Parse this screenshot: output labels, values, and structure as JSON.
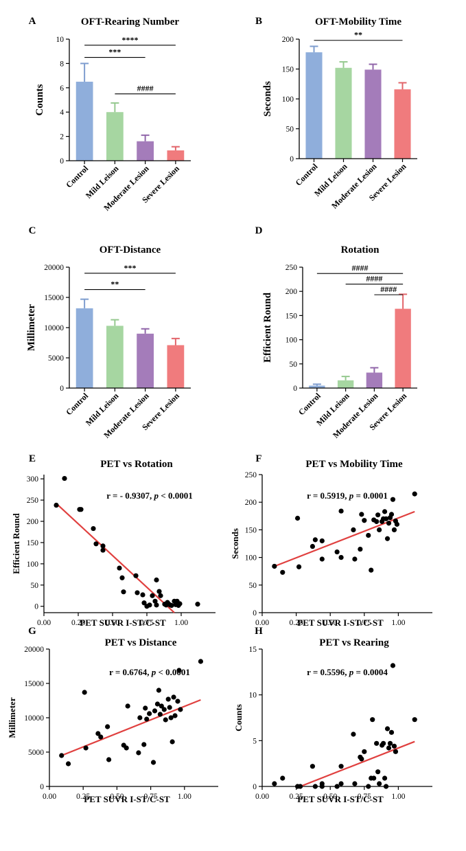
{
  "figure": {
    "description": "Multi-panel scientific figure"
  },
  "colors": {
    "control": "#8FAEDB",
    "control_err": "#7E9DCF",
    "mild": "#A6D6A1",
    "mild_err": "#95C98F",
    "moderate": "#A47CBA",
    "moderate_err": "#9166AA",
    "severe": "#F07B7D",
    "severe_err": "#E2646A",
    "fit_line": "#E0403F",
    "point": "#000000"
  },
  "chart_data": [
    {
      "id": "A",
      "panel_label": "A",
      "type": "bar",
      "title": "OFT-Rearing Number",
      "ylabel": "Counts",
      "xlabel": "",
      "categories": [
        "Control",
        "Mild Leison",
        "Moderate Lesion",
        "Severe Lesion"
      ],
      "values": [
        6.5,
        4.0,
        1.6,
        0.85
      ],
      "errors": [
        1.5,
        0.75,
        0.5,
        0.3
      ],
      "ylim": [
        0,
        10
      ],
      "yticks": [
        0,
        2,
        4,
        6,
        8,
        10
      ],
      "sig": [
        {
          "from": 0,
          "to": 3,
          "label": "****",
          "y": 9.5
        },
        {
          "from": 0,
          "to": 2,
          "label": "***",
          "y": 8.5
        },
        {
          "from": 1,
          "to": 3,
          "label": "####",
          "y": 5.5
        }
      ]
    },
    {
      "id": "B",
      "panel_label": "B",
      "type": "bar",
      "title": "OFT-Mobility Time",
      "ylabel": "Seconds",
      "xlabel": "",
      "categories": [
        "Control",
        "Mild Leison",
        "Moderate Lesion",
        "Severe Lesion"
      ],
      "values": [
        178,
        152,
        149,
        116
      ],
      "errors": [
        10,
        10,
        9,
        11
      ],
      "ylim": [
        0,
        200
      ],
      "yticks": [
        0,
        50,
        100,
        150,
        200
      ],
      "sig": [
        {
          "from": 0,
          "to": 3,
          "label": "**",
          "y": 198
        }
      ]
    },
    {
      "id": "C",
      "panel_label": "C",
      "type": "bar",
      "title": "OFT-Distance",
      "ylabel": "Millimeter",
      "xlabel": "",
      "categories": [
        "Control",
        "Mild Leison",
        "Moderate Lesion",
        "Severe Lesion"
      ],
      "values": [
        13200,
        10300,
        9000,
        7100
      ],
      "errors": [
        1500,
        1000,
        800,
        1100
      ],
      "ylim": [
        0,
        20000
      ],
      "yticks": [
        0,
        5000,
        10000,
        15000,
        20000
      ],
      "sig": [
        {
          "from": 0,
          "to": 3,
          "label": "***",
          "y": 19000
        },
        {
          "from": 0,
          "to": 2,
          "label": "**",
          "y": 16300
        }
      ]
    },
    {
      "id": "D",
      "panel_label": "D",
      "type": "bar",
      "title": "Rotation",
      "ylabel": "Efficient Round",
      "xlabel": "",
      "categories": [
        "Control",
        "Mild Leison",
        "Moderate Lesion",
        "Severe Lesion"
      ],
      "values": [
        5,
        16,
        32,
        164
      ],
      "errors": [
        3,
        8,
        10,
        30
      ],
      "ylim": [
        0,
        250
      ],
      "yticks": [
        0,
        50,
        100,
        150,
        200,
        250
      ],
      "sig": [
        {
          "from": 0,
          "to": 3,
          "label": "####",
          "y": 237
        },
        {
          "from": 1,
          "to": 3,
          "label": "####",
          "y": 215
        },
        {
          "from": 2,
          "to": 3,
          "label": "####",
          "y": 193
        }
      ]
    },
    {
      "id": "E",
      "panel_label": "E",
      "type": "scatter",
      "title": "PET vs Rotation",
      "xlabel": "PET SUVR I-ST/C-ST",
      "ylabel": "Efficient Round",
      "annotation_prefix": "r = - 0.9307, ",
      "annotation_p": "p",
      "annotation_suffix": " < 0.0001",
      "xlim": [
        0,
        1.25
      ],
      "ylim": [
        -15,
        310
      ],
      "xticks": [
        "0.00",
        "0.25",
        "0.50",
        "0.75",
        "1.00"
      ],
      "yticks": [
        0,
        50,
        100,
        150,
        200,
        250,
        300
      ],
      "fit": {
        "x0": 0.09,
        "y0": 242,
        "x1": 0.95,
        "y1": -15
      },
      "points": [
        [
          0.09,
          238
        ],
        [
          0.15,
          301
        ],
        [
          0.26,
          228
        ],
        [
          0.27,
          228
        ],
        [
          0.36,
          183
        ],
        [
          0.38,
          147
        ],
        [
          0.43,
          142
        ],
        [
          0.43,
          132
        ],
        [
          0.55,
          90
        ],
        [
          0.57,
          67
        ],
        [
          0.58,
          34
        ],
        [
          0.67,
          72
        ],
        [
          0.68,
          32
        ],
        [
          0.72,
          27
        ],
        [
          0.73,
          8
        ],
        [
          0.75,
          0
        ],
        [
          0.77,
          3
        ],
        [
          0.79,
          25
        ],
        [
          0.81,
          12
        ],
        [
          0.82,
          3
        ],
        [
          0.82,
          62
        ],
        [
          0.84,
          35
        ],
        [
          0.85,
          25
        ],
        [
          0.88,
          5
        ],
        [
          0.89,
          3
        ],
        [
          0.9,
          9
        ],
        [
          0.91,
          5
        ],
        [
          0.92,
          3
        ],
        [
          0.93,
          2
        ],
        [
          0.95,
          12
        ],
        [
          0.96,
          4
        ],
        [
          0.97,
          12
        ],
        [
          0.98,
          2
        ],
        [
          0.99,
          6
        ],
        [
          1.12,
          5
        ]
      ]
    },
    {
      "id": "F",
      "panel_label": "F",
      "type": "scatter",
      "title": "PET vs Mobility Time",
      "xlabel": "PET SUVR I-ST/C-ST",
      "ylabel": "Seconds",
      "annotation_prefix": "r = 0.5919, ",
      "annotation_p": "p",
      "annotation_suffix": " = 0.0001",
      "xlim": [
        0,
        1.25
      ],
      "ylim": [
        0,
        250
      ],
      "xticks": [
        "0.00",
        "0.25",
        "0.50",
        "0.75",
        "1.00"
      ],
      "yticks": [
        0,
        50,
        100,
        150,
        200,
        250
      ],
      "fit": {
        "x0": 0.09,
        "y0": 84,
        "x1": 1.12,
        "y1": 183
      },
      "points": [
        [
          0.09,
          84
        ],
        [
          0.15,
          73
        ],
        [
          0.26,
          171
        ],
        [
          0.27,
          83
        ],
        [
          0.37,
          120
        ],
        [
          0.39,
          132
        ],
        [
          0.44,
          97
        ],
        [
          0.44,
          130
        ],
        [
          0.55,
          110
        ],
        [
          0.58,
          100
        ],
        [
          0.58,
          184
        ],
        [
          0.67,
          150
        ],
        [
          0.68,
          97
        ],
        [
          0.72,
          115
        ],
        [
          0.73,
          178
        ],
        [
          0.75,
          167
        ],
        [
          0.78,
          140
        ],
        [
          0.8,
          77
        ],
        [
          0.82,
          168
        ],
        [
          0.84,
          165
        ],
        [
          0.85,
          177
        ],
        [
          0.86,
          150
        ],
        [
          0.88,
          165
        ],
        [
          0.89,
          170
        ],
        [
          0.9,
          183
        ],
        [
          0.91,
          170
        ],
        [
          0.92,
          134
        ],
        [
          0.93,
          162
        ],
        [
          0.94,
          172
        ],
        [
          0.95,
          178
        ],
        [
          0.96,
          205
        ],
        [
          0.97,
          150
        ],
        [
          0.98,
          166
        ],
        [
          0.99,
          160
        ],
        [
          1.12,
          215
        ]
      ]
    },
    {
      "id": "G",
      "panel_label": "G",
      "type": "scatter",
      "title": "PET vs Distance",
      "xlabel": "PET SUVR I-ST/C-ST",
      "ylabel": "Millimeter",
      "annotation_prefix": "r = 0.6764, ",
      "annotation_p": "p",
      "annotation_suffix": " < 0.0001",
      "xlim": [
        0,
        1.25
      ],
      "ylim": [
        0,
        20000
      ],
      "xticks": [
        "0.00",
        "0.25",
        "0.50",
        "0.75",
        "1.00"
      ],
      "yticks": [
        0,
        5000,
        10000,
        15000,
        20000
      ],
      "fit": {
        "x0": 0.09,
        "y0": 4500,
        "x1": 1.12,
        "y1": 12600
      },
      "points": [
        [
          0.09,
          4500
        ],
        [
          0.14,
          3300
        ],
        [
          0.26,
          13700
        ],
        [
          0.27,
          5600
        ],
        [
          0.36,
          7700
        ],
        [
          0.38,
          7200
        ],
        [
          0.43,
          8700
        ],
        [
          0.44,
          3900
        ],
        [
          0.55,
          6000
        ],
        [
          0.57,
          5600
        ],
        [
          0.58,
          11700
        ],
        [
          0.66,
          4900
        ],
        [
          0.67,
          10000
        ],
        [
          0.7,
          6100
        ],
        [
          0.71,
          11400
        ],
        [
          0.72,
          9800
        ],
        [
          0.74,
          10600
        ],
        [
          0.77,
          3500
        ],
        [
          0.78,
          11000
        ],
        [
          0.8,
          12000
        ],
        [
          0.81,
          14000
        ],
        [
          0.82,
          10500
        ],
        [
          0.83,
          11700
        ],
        [
          0.85,
          11200
        ],
        [
          0.86,
          9700
        ],
        [
          0.88,
          12700
        ],
        [
          0.89,
          11500
        ],
        [
          0.9,
          10000
        ],
        [
          0.91,
          6500
        ],
        [
          0.92,
          13000
        ],
        [
          0.93,
          10300
        ],
        [
          0.95,
          12400
        ],
        [
          0.96,
          16900
        ],
        [
          0.97,
          11200
        ],
        [
          1.12,
          18200
        ]
      ]
    },
    {
      "id": "H",
      "panel_label": "H",
      "type": "scatter",
      "title": "PET vs Rearing",
      "xlabel": "PET SUVR I-ST/C-ST",
      "ylabel": "Counts",
      "annotation_prefix": "r = 0.5596, ",
      "annotation_p": "p",
      "annotation_suffix": " = 0.0004",
      "xlim": [
        0,
        1.25
      ],
      "ylim": [
        0,
        15
      ],
      "xticks": [
        "0.00",
        "0.25",
        "0.50",
        "0.75",
        "1.00"
      ],
      "yticks": [
        0,
        5,
        10,
        15
      ],
      "fit": {
        "x0": 0.28,
        "y0": 0,
        "x1": 1.12,
        "y1": 4.9
      },
      "points": [
        [
          0.09,
          0.3
        ],
        [
          0.15,
          0.9
        ],
        [
          0.26,
          0.0
        ],
        [
          0.28,
          0.0
        ],
        [
          0.37,
          2.2
        ],
        [
          0.39,
          0.0
        ],
        [
          0.44,
          0.0
        ],
        [
          0.44,
          0.3
        ],
        [
          0.55,
          0.0
        ],
        [
          0.58,
          0.3
        ],
        [
          0.58,
          2.2
        ],
        [
          0.67,
          5.7
        ],
        [
          0.68,
          0.3
        ],
        [
          0.72,
          3.2
        ],
        [
          0.73,
          3.0
        ],
        [
          0.75,
          3.8
        ],
        [
          0.78,
          0.0
        ],
        [
          0.8,
          0.9
        ],
        [
          0.81,
          7.3
        ],
        [
          0.82,
          0.9
        ],
        [
          0.84,
          4.7
        ],
        [
          0.85,
          1.6
        ],
        [
          0.86,
          0.3
        ],
        [
          0.88,
          4.5
        ],
        [
          0.89,
          4.7
        ],
        [
          0.9,
          0.9
        ],
        [
          0.91,
          0.0
        ],
        [
          0.92,
          6.3
        ],
        [
          0.93,
          4.2
        ],
        [
          0.94,
          4.7
        ],
        [
          0.95,
          5.9
        ],
        [
          0.96,
          13.2
        ],
        [
          0.97,
          4.4
        ],
        [
          0.98,
          3.8
        ],
        [
          1.12,
          7.3
        ]
      ]
    }
  ]
}
